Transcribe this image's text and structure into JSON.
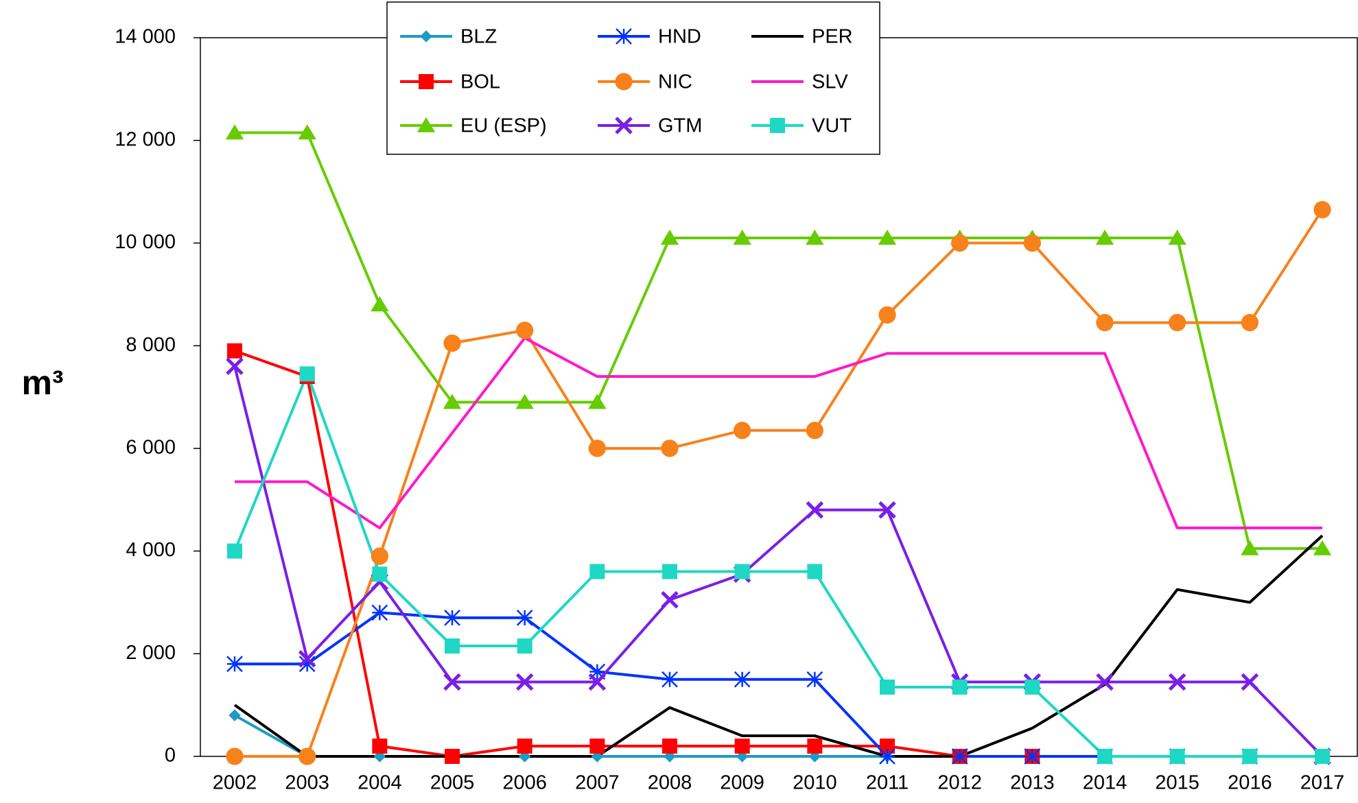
{
  "chart_data": {
    "type": "line",
    "y_label": "m³",
    "categories": [
      "2002",
      "2003",
      "2004",
      "2005",
      "2006",
      "2007",
      "2008",
      "2009",
      "2010",
      "2011",
      "2012",
      "2013",
      "2014",
      "2015",
      "2016",
      "2017"
    ],
    "ylim": [
      0,
      14000
    ],
    "yticks": [
      0,
      {
        "value": 2000,
        "label": "2 000"
      },
      {
        "value": 4000,
        "label": "4 000"
      },
      {
        "value": 6000,
        "label": "6 000"
      },
      {
        "value": 8000,
        "label": "8 000"
      },
      {
        "value": 10000,
        "label": "10 000"
      },
      {
        "value": 12000,
        "label": "12 000"
      },
      {
        "value": 14000,
        "label": "14 000"
      }
    ],
    "series": [
      {
        "name": "BLZ",
        "color": "#1e9bc4",
        "marker": "diamond",
        "values": [
          800,
          0,
          0,
          0,
          0,
          0,
          0,
          0,
          0,
          0,
          null,
          null,
          null,
          null,
          null,
          null
        ]
      },
      {
        "name": "BOL",
        "color": "#ff0000",
        "marker": "square",
        "values": [
          7900,
          7400,
          200,
          0,
          200,
          200,
          200,
          200,
          200,
          200,
          0,
          0,
          null,
          null,
          null,
          null
        ]
      },
      {
        "name": "EU (ESP)",
        "color": "#66cc00",
        "marker": "triangle",
        "values": [
          12150,
          12150,
          8800,
          6900,
          6900,
          6900,
          10100,
          10100,
          10100,
          10100,
          10100,
          10100,
          10100,
          10100,
          4050,
          4050
        ]
      },
      {
        "name": "HND",
        "color": "#0033ff",
        "marker": "asterisk",
        "values": [
          1800,
          1800,
          2800,
          2700,
          2700,
          1650,
          1500,
          1500,
          1500,
          0,
          0,
          0,
          0,
          0,
          0,
          0
        ]
      },
      {
        "name": "NIC",
        "color": "#f7821b",
        "marker": "circle",
        "values": [
          0,
          0,
          3900,
          8050,
          8300,
          6000,
          6000,
          6350,
          6350,
          8600,
          10000,
          10000,
          8450,
          8450,
          8450,
          10650
        ]
      },
      {
        "name": "GTM",
        "color": "#7a1fe6",
        "marker": "x",
        "values": [
          7600,
          1900,
          3400,
          1450,
          1450,
          1450,
          3050,
          3550,
          4800,
          4800,
          1450,
          1450,
          1450,
          1450,
          1450,
          0
        ]
      },
      {
        "name": "PER",
        "color": "#000000",
        "marker": "none",
        "values": [
          1000,
          0,
          0,
          0,
          0,
          0,
          950,
          400,
          400,
          0,
          0,
          550,
          1400,
          3250,
          3000,
          4300
        ]
      },
      {
        "name": "SLV",
        "color": "#ff19c8",
        "marker": "none",
        "values": [
          5350,
          5350,
          4450,
          6300,
          8150,
          7400,
          7400,
          7400,
          7400,
          7850,
          7850,
          7850,
          7850,
          4450,
          4450,
          4450
        ]
      },
      {
        "name": "VUT",
        "color": "#1ed8c4",
        "marker": "square",
        "values": [
          4000,
          7450,
          3550,
          2150,
          2150,
          3600,
          3600,
          3600,
          3600,
          1350,
          1350,
          1350,
          0,
          0,
          0,
          0
        ]
      }
    ]
  }
}
